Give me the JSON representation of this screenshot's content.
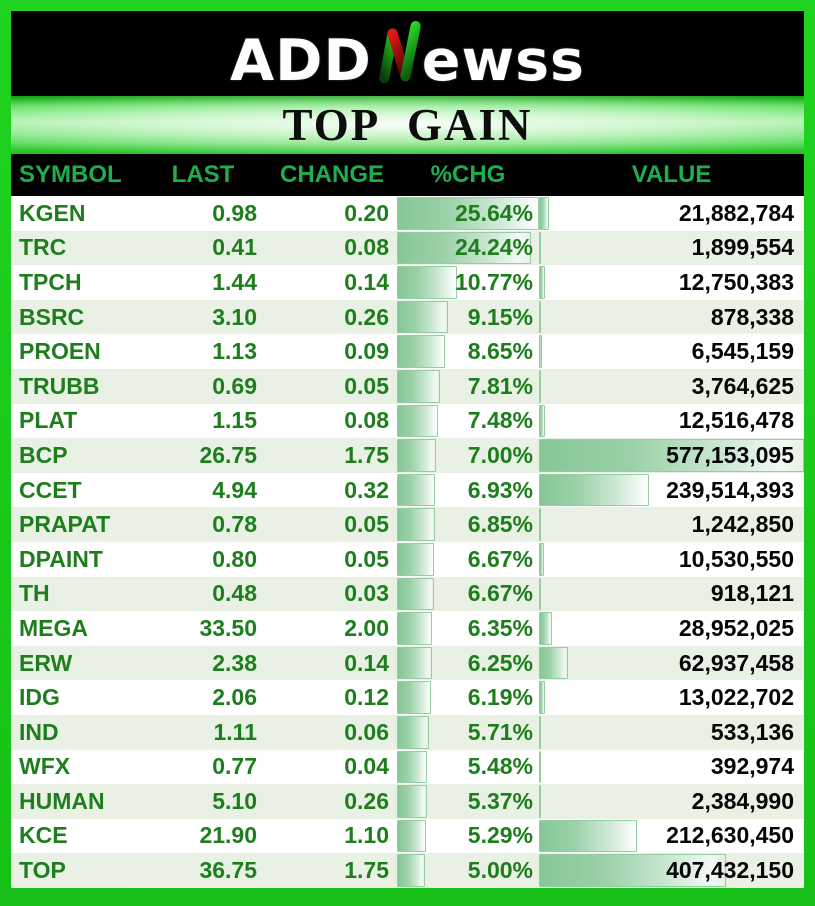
{
  "brand": {
    "logo_prefix": "ADD",
    "logo_n_icon": "stylized-N",
    "logo_suffix": "ewss"
  },
  "colors": {
    "frame_green": "#1BCB1B",
    "header_text_green": "#1FAE4D",
    "row_text_green": "#1E7E1E",
    "value_text_black": "#050505",
    "even_row_bg": "#E8F1E4",
    "databar_fill_green": "#86C796",
    "databar_border_green": "#95CDA3",
    "logo_red": "#D01818",
    "logo_bright_green": "#2EE62E"
  },
  "chart_data": {
    "type": "table",
    "title": "TOP GAIN",
    "columns": [
      "SYMBOL",
      "LAST",
      "CHANGE",
      "%CHG",
      "VALUE"
    ],
    "pct_chg_max": 25.64,
    "value_max": 577153095,
    "databar_columns": [
      "%CHG",
      "VALUE"
    ],
    "rows": [
      {
        "symbol": "KGEN",
        "last": "0.98",
        "change": "0.20",
        "pct_chg": "25.64%",
        "pct_chg_num": 25.64,
        "value": "21,882,784",
        "value_num": 21882784
      },
      {
        "symbol": "TRC",
        "last": "0.41",
        "change": "0.08",
        "pct_chg": "24.24%",
        "pct_chg_num": 24.24,
        "value": "1,899,554",
        "value_num": 1899554
      },
      {
        "symbol": "TPCH",
        "last": "1.44",
        "change": "0.14",
        "pct_chg": "10.77%",
        "pct_chg_num": 10.77,
        "value": "12,750,383",
        "value_num": 12750383
      },
      {
        "symbol": "BSRC",
        "last": "3.10",
        "change": "0.26",
        "pct_chg": "9.15%",
        "pct_chg_num": 9.15,
        "value": "878,338",
        "value_num": 878338
      },
      {
        "symbol": "PROEN",
        "last": "1.13",
        "change": "0.09",
        "pct_chg": "8.65%",
        "pct_chg_num": 8.65,
        "value": "6,545,159",
        "value_num": 6545159
      },
      {
        "symbol": "TRUBB",
        "last": "0.69",
        "change": "0.05",
        "pct_chg": "7.81%",
        "pct_chg_num": 7.81,
        "value": "3,764,625",
        "value_num": 3764625
      },
      {
        "symbol": "PLAT",
        "last": "1.15",
        "change": "0.08",
        "pct_chg": "7.48%",
        "pct_chg_num": 7.48,
        "value": "12,516,478",
        "value_num": 12516478
      },
      {
        "symbol": "BCP",
        "last": "26.75",
        "change": "1.75",
        "pct_chg": "7.00%",
        "pct_chg_num": 7.0,
        "value": "577,153,095",
        "value_num": 577153095
      },
      {
        "symbol": "CCET",
        "last": "4.94",
        "change": "0.32",
        "pct_chg": "6.93%",
        "pct_chg_num": 6.93,
        "value": "239,514,393",
        "value_num": 239514393
      },
      {
        "symbol": "PRAPAT",
        "last": "0.78",
        "change": "0.05",
        "pct_chg": "6.85%",
        "pct_chg_num": 6.85,
        "value": "1,242,850",
        "value_num": 1242850
      },
      {
        "symbol": "DPAINT",
        "last": "0.80",
        "change": "0.05",
        "pct_chg": "6.67%",
        "pct_chg_num": 6.67,
        "value": "10,530,550",
        "value_num": 10530550
      },
      {
        "symbol": "TH",
        "last": "0.48",
        "change": "0.03",
        "pct_chg": "6.67%",
        "pct_chg_num": 6.67,
        "value": "918,121",
        "value_num": 918121
      },
      {
        "symbol": "MEGA",
        "last": "33.50",
        "change": "2.00",
        "pct_chg": "6.35%",
        "pct_chg_num": 6.35,
        "value": "28,952,025",
        "value_num": 28952025
      },
      {
        "symbol": "ERW",
        "last": "2.38",
        "change": "0.14",
        "pct_chg": "6.25%",
        "pct_chg_num": 6.25,
        "value": "62,937,458",
        "value_num": 62937458
      },
      {
        "symbol": "IDG",
        "last": "2.06",
        "change": "0.12",
        "pct_chg": "6.19%",
        "pct_chg_num": 6.19,
        "value": "13,022,702",
        "value_num": 13022702
      },
      {
        "symbol": "IND",
        "last": "1.11",
        "change": "0.06",
        "pct_chg": "5.71%",
        "pct_chg_num": 5.71,
        "value": "533,136",
        "value_num": 533136
      },
      {
        "symbol": "WFX",
        "last": "0.77",
        "change": "0.04",
        "pct_chg": "5.48%",
        "pct_chg_num": 5.48,
        "value": "392,974",
        "value_num": 392974
      },
      {
        "symbol": "HUMAN",
        "last": "5.10",
        "change": "0.26",
        "pct_chg": "5.37%",
        "pct_chg_num": 5.37,
        "value": "2,384,990",
        "value_num": 2384990
      },
      {
        "symbol": "KCE",
        "last": "21.90",
        "change": "1.10",
        "pct_chg": "5.29%",
        "pct_chg_num": 5.29,
        "value": "212,630,450",
        "value_num": 212630450
      },
      {
        "symbol": "TOP",
        "last": "36.75",
        "change": "1.75",
        "pct_chg": "5.00%",
        "pct_chg_num": 5.0,
        "value": "407,432,150",
        "value_num": 407432150
      }
    ]
  }
}
